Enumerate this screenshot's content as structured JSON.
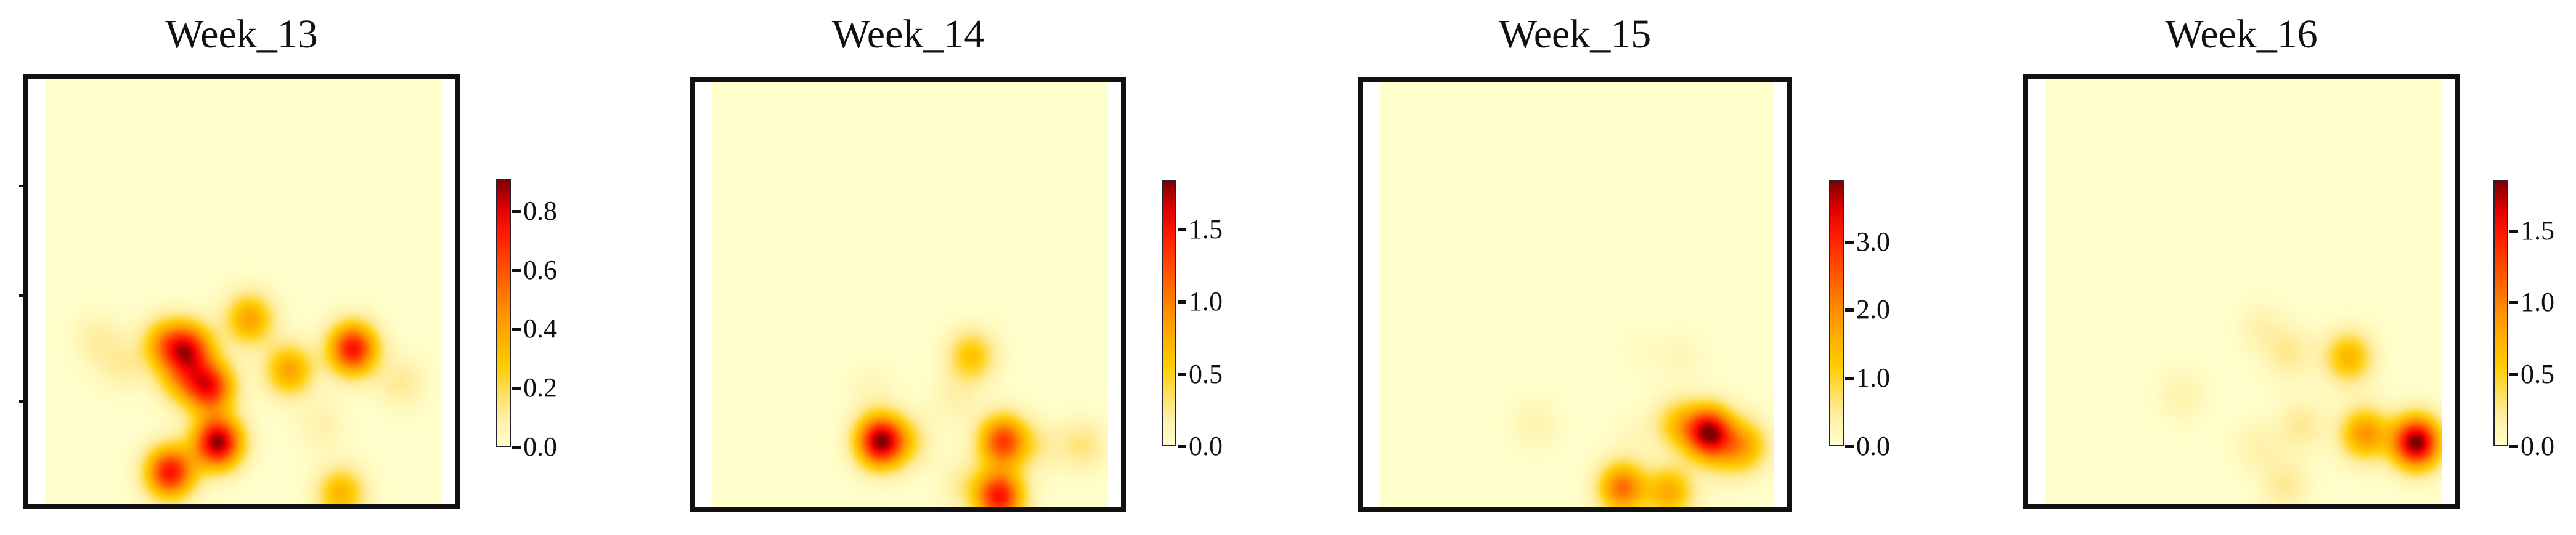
{
  "colormap": [
    "#ffffcc",
    "#ffeda0",
    "#ffcc00",
    "#ff9900",
    "#ff4a00",
    "#ff0000",
    "#800000"
  ],
  "chart_data": [
    {
      "type": "heatmap",
      "title": "Week_13",
      "grid_size": [
        100,
        100
      ],
      "vmin": 0,
      "vmax": 0.91,
      "colorbar_ticks": [
        0.0,
        0.2,
        0.4,
        0.6,
        0.8
      ],
      "colorbar_tick_labels": [
        "0.0",
        "0.2",
        "0.4",
        "0.6",
        "0.8"
      ],
      "hotspots": [
        {
          "col": 43,
          "row": 85,
          "value": 0.9
        },
        {
          "col": 31,
          "row": 92,
          "value": 0.75
        },
        {
          "col": 41,
          "row": 72,
          "value": 0.7
        },
        {
          "col": 36,
          "row": 63,
          "value": 0.6
        },
        {
          "col": 30,
          "row": 62,
          "value": 0.4
        },
        {
          "col": 51,
          "row": 56,
          "value": 0.4
        },
        {
          "col": 77,
          "row": 63,
          "value": 0.75
        },
        {
          "col": 61,
          "row": 68,
          "value": 0.4
        },
        {
          "col": 89,
          "row": 71,
          "value": 0.12
        },
        {
          "col": 13,
          "row": 61,
          "value": 0.1
        },
        {
          "col": 19,
          "row": 67,
          "value": 0.1
        },
        {
          "col": 74,
          "row": 97,
          "value": 0.35
        },
        {
          "col": 69,
          "row": 81,
          "value": 0.08
        },
        {
          "col": 34,
          "row": 70,
          "value": 0.3
        }
      ]
    },
    {
      "type": "heatmap",
      "title": "Week_14",
      "grid_size": [
        100,
        100
      ],
      "vmin": 0,
      "vmax": 1.84,
      "colorbar_ticks": [
        0.0,
        0.5,
        1.0,
        1.5
      ],
      "colorbar_tick_labels": [
        "0.0",
        "0.5",
        "1.0",
        "1.5"
      ],
      "hotspots": [
        {
          "col": 42,
          "row": 84,
          "value": 1.8
        },
        {
          "col": 73,
          "row": 84,
          "value": 1.3
        },
        {
          "col": 72,
          "row": 97,
          "value": 1.5
        },
        {
          "col": 65,
          "row": 64,
          "value": 0.6
        },
        {
          "col": 61,
          "row": 74,
          "value": 0.15
        },
        {
          "col": 40,
          "row": 72,
          "value": 0.1
        },
        {
          "col": 49,
          "row": 84,
          "value": 0.3
        },
        {
          "col": 82,
          "row": 85,
          "value": 0.2
        },
        {
          "col": 93,
          "row": 85,
          "value": 0.3
        },
        {
          "col": 63,
          "row": 94,
          "value": 0.2
        }
      ]
    },
    {
      "type": "heatmap",
      "title": "Week_15",
      "grid_size": [
        100,
        100
      ],
      "vmin": 0,
      "vmax": 3.9,
      "colorbar_ticks": [
        0.0,
        1.0,
        2.0,
        3.0
      ],
      "colorbar_tick_labels": [
        "0.0",
        "1.0",
        "2.0",
        "3.0"
      ],
      "hotspots": [
        {
          "col": 83,
          "row": 82,
          "value": 3.7
        },
        {
          "col": 92,
          "row": 85,
          "value": 1.5
        },
        {
          "col": 75,
          "row": 80,
          "value": 1.1
        },
        {
          "col": 61,
          "row": 95,
          "value": 2.3
        },
        {
          "col": 73,
          "row": 96,
          "value": 1.6
        },
        {
          "col": 39,
          "row": 80,
          "value": 0.3
        },
        {
          "col": 64,
          "row": 83,
          "value": 0.15
        },
        {
          "col": 76,
          "row": 64,
          "value": 0.2
        },
        {
          "col": 66,
          "row": 63,
          "value": 0.1
        },
        {
          "col": 87,
          "row": 88,
          "value": 0.4
        }
      ]
    },
    {
      "type": "heatmap",
      "title": "Week_16",
      "grid_size": [
        100,
        100
      ],
      "vmin": 0,
      "vmax": 1.85,
      "colorbar_ticks": [
        0.0,
        0.5,
        1.0,
        1.5
      ],
      "colorbar_tick_labels": [
        "0.0",
        "0.5",
        "1.0",
        "1.5"
      ],
      "hotspots": [
        {
          "col": 93,
          "row": 85,
          "value": 1.9
        },
        {
          "col": 80,
          "row": 83,
          "value": 0.9
        },
        {
          "col": 76,
          "row": 65,
          "value": 0.7
        },
        {
          "col": 61,
          "row": 64,
          "value": 0.25
        },
        {
          "col": 54,
          "row": 58,
          "value": 0.15
        },
        {
          "col": 64,
          "row": 81,
          "value": 0.25
        },
        {
          "col": 34,
          "row": 74,
          "value": 0.15
        },
        {
          "col": 53,
          "row": 86,
          "value": 0.15
        },
        {
          "col": 60,
          "row": 95,
          "value": 0.25
        }
      ]
    }
  ]
}
